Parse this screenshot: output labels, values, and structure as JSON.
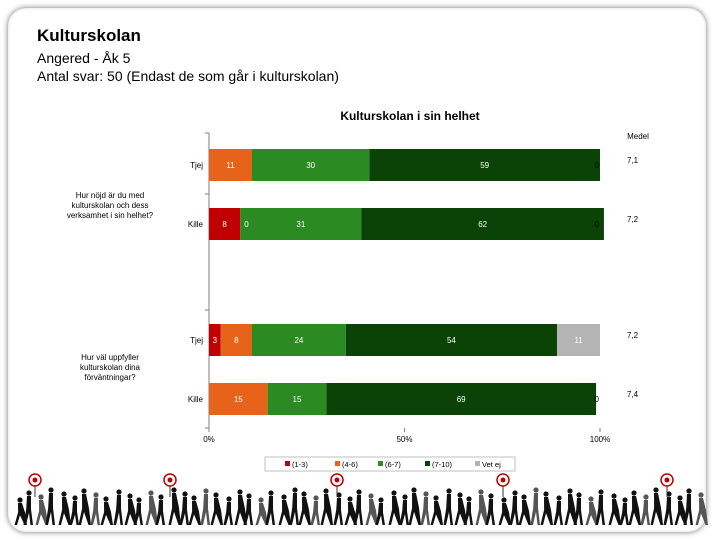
{
  "header": {
    "title": "Kulturskolan",
    "subtitle_1": "Angered - Åk 5",
    "subtitle_2": "Antal svar: 50 (Endast de som går i kulturskolan)"
  },
  "chart_data": {
    "type": "bar",
    "orientation": "horizontal",
    "stacked": true,
    "title": "Kulturskolan i sin helhet",
    "mean_header": "Medel",
    "xlim": [
      0,
      100
    ],
    "x_ticks": [
      "0%",
      "50%",
      "100%"
    ],
    "groups": [
      {
        "question": "Hur nöjd är du med kulturskolan och dess verksamhet i sin helhet?",
        "question_lines": [
          "Hur nöjd är du med",
          "kulturskolan och dess",
          "verksamhet i sin helhet?"
        ],
        "rows": [
          {
            "label": "Tjej",
            "values": [
              0,
              11,
              30,
              59,
              0
            ],
            "mean": "7,1"
          },
          {
            "label": "Kille",
            "values": [
              8,
              0,
              31,
              62,
              0
            ],
            "mean": "7,2"
          }
        ]
      },
      {
        "question": "Hur väl uppfyller kulturskolan dina förväntningar?",
        "question_lines": [
          "Hur väl uppfyller",
          "kulturskolan dina",
          "förväntningar?"
        ],
        "rows": [
          {
            "label": "Tjej",
            "values": [
              3,
              8,
              24,
              54,
              11
            ],
            "mean": "7,2"
          },
          {
            "label": "Kille",
            "values": [
              0,
              15,
              15,
              69,
              0
            ],
            "mean": "7,4"
          }
        ]
      }
    ],
    "series": [
      {
        "name": "(1-3)",
        "color": "#c00000"
      },
      {
        "name": "(4-6)",
        "color": "#e8631a"
      },
      {
        "name": "(6-7)",
        "color": "#2c8a23"
      },
      {
        "name": "(7-10)",
        "color": "#0b4206"
      },
      {
        "name": "Vet ej",
        "color": "#b4b4b4"
      }
    ],
    "legend_position": "bottom",
    "grid": false
  }
}
